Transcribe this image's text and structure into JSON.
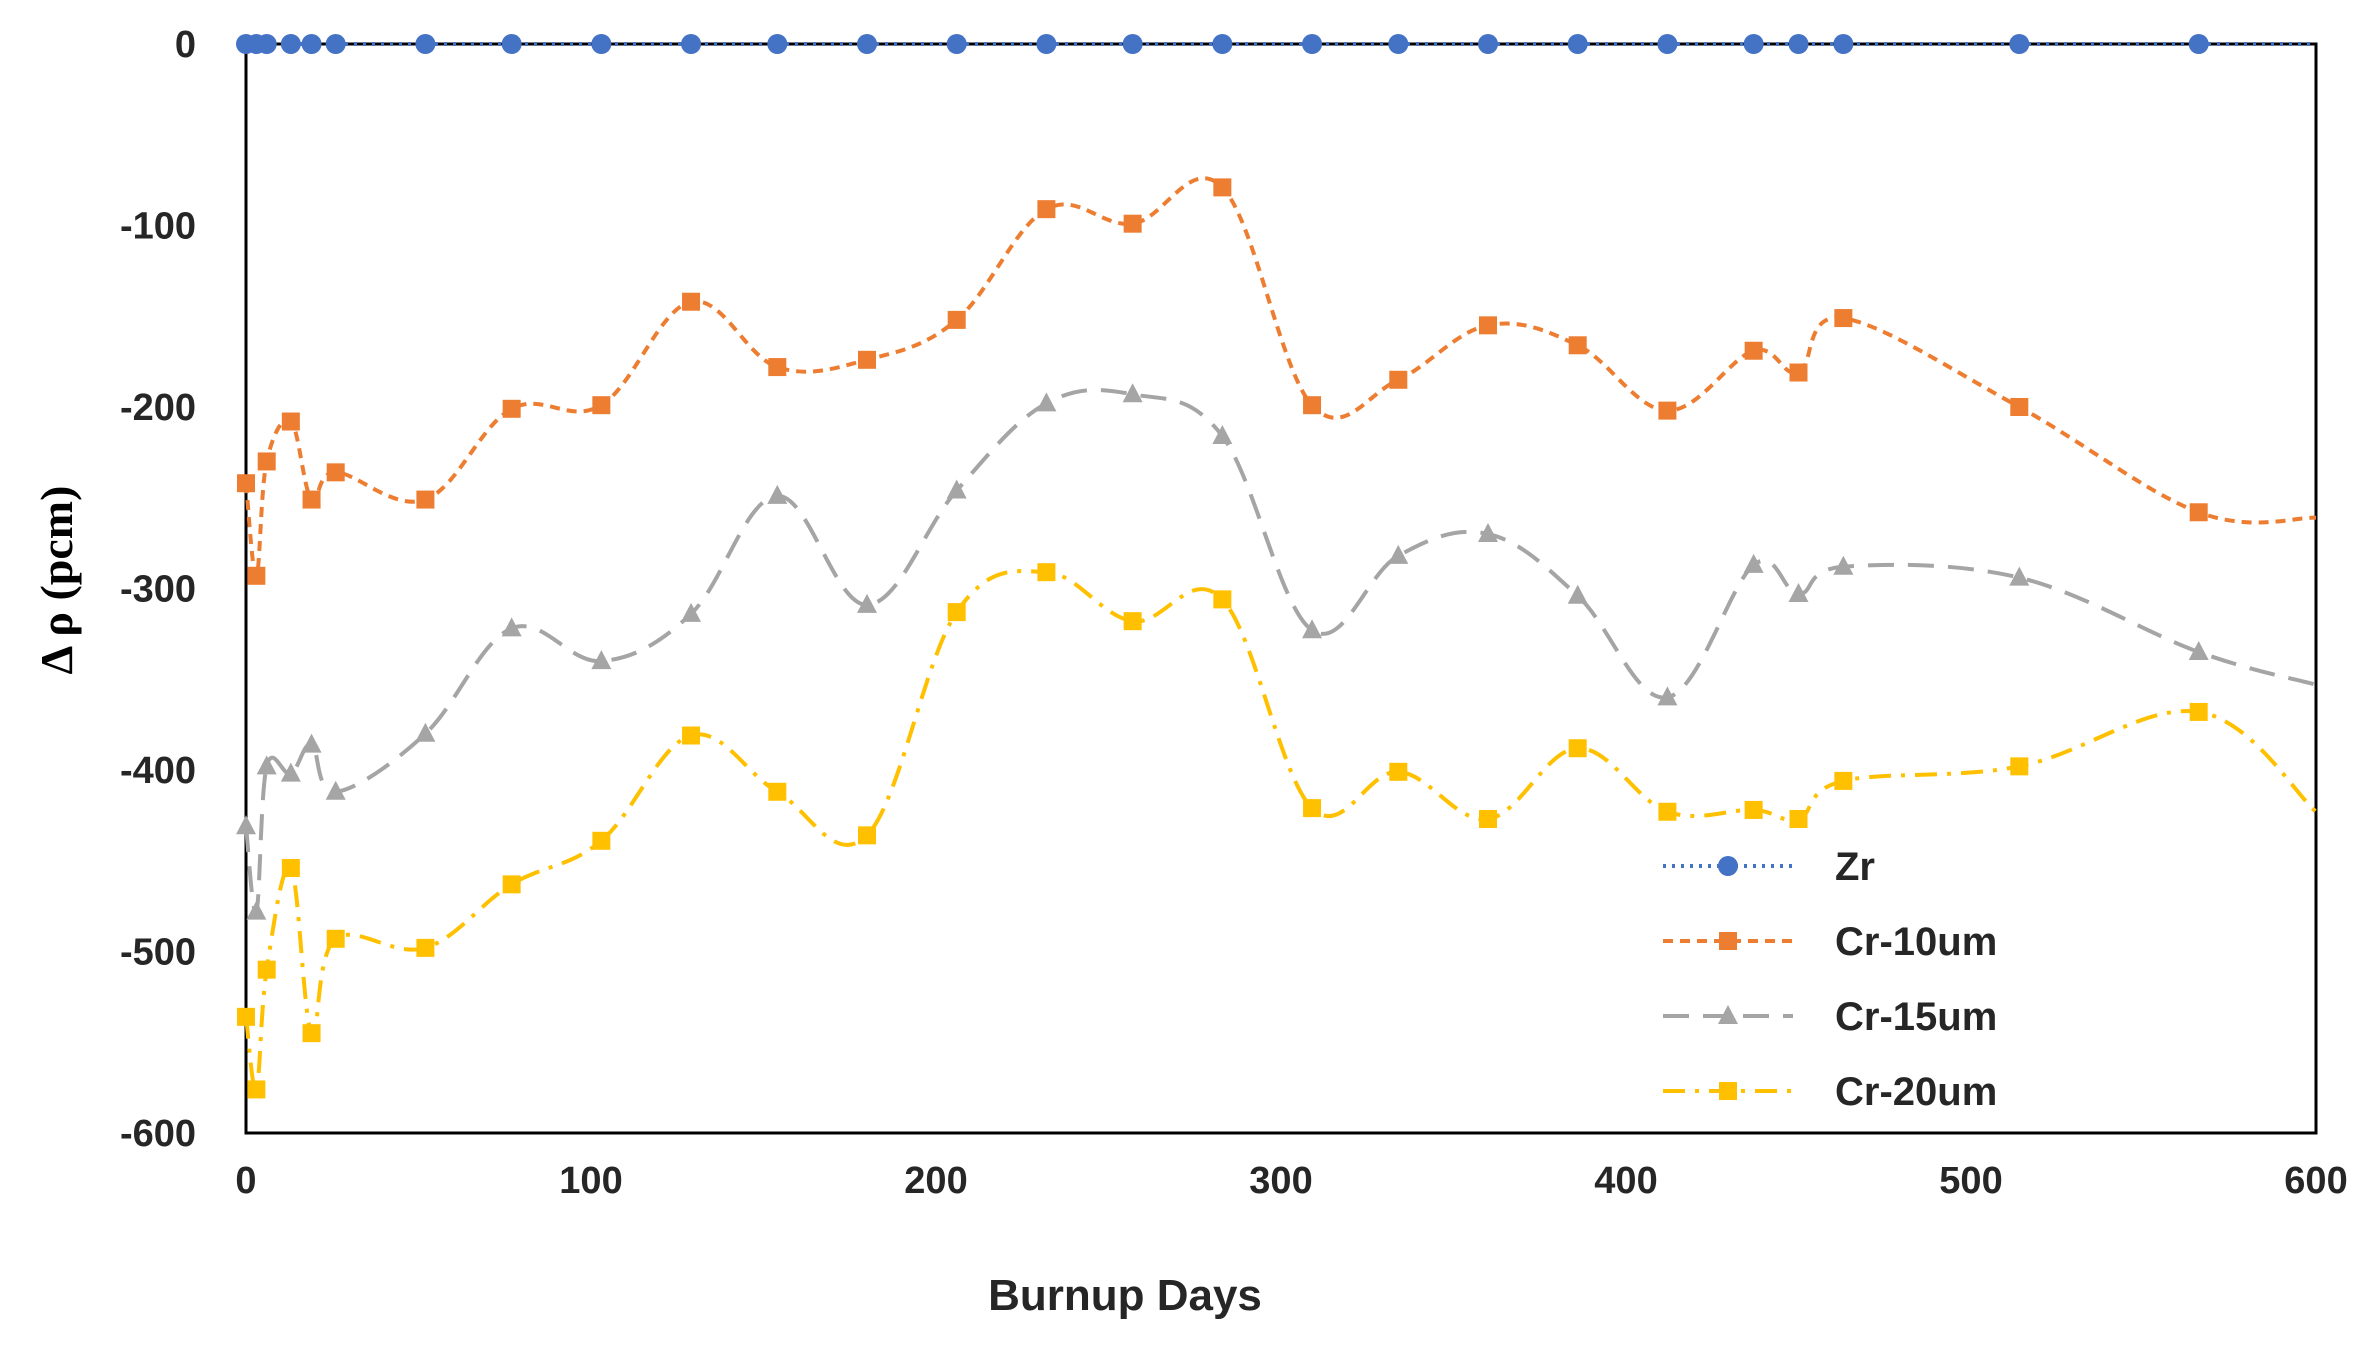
{
  "chart_data": {
    "type": "line",
    "title": "",
    "xlabel": "Burnup Days",
    "ylabel": "Δ ρ (pcm)",
    "xlim": [
      0,
      600
    ],
    "ylim": [
      -600,
      0
    ],
    "xticks": [
      0,
      100,
      200,
      300,
      400,
      500,
      600
    ],
    "yticks": [
      0,
      -100,
      -200,
      -300,
      -400,
      -500,
      -600
    ],
    "xtick_labels": [
      "0",
      "100",
      "200",
      "300",
      "400",
      "500",
      "600"
    ],
    "ytick_labels": [
      "0",
      "-100",
      "-200",
      "-300",
      "-400",
      "-500",
      "-600"
    ],
    "grid": false,
    "legend_position": "bottom-right",
    "x": [
      0,
      3,
      6,
      13,
      19,
      26,
      52,
      77,
      103,
      129,
      154,
      180,
      206,
      232,
      257,
      283,
      309,
      334,
      360,
      386,
      412,
      437,
      450,
      463,
      514,
      566
    ],
    "series": [
      {
        "name": "Zr",
        "color": "#4472C4",
        "marker": "circle",
        "line_style": "dotted",
        "values": [
          0,
          0,
          0,
          0,
          0,
          0,
          0,
          0,
          0,
          0,
          0,
          0,
          0,
          0,
          0,
          0,
          0,
          0,
          0,
          0,
          0,
          0,
          0,
          0,
          0,
          0
        ],
        "line_extends_to": 600
      },
      {
        "name": "Cr-10um",
        "color": "#ED7D31",
        "marker": "square",
        "line_style": "dashed",
        "values": [
          -242,
          -293,
          -230,
          -208,
          -251,
          -236,
          -251,
          -201,
          -199,
          -142,
          -178,
          -174,
          -152,
          -91,
          -99,
          -79,
          -199,
          -185,
          -155,
          -166,
          -202,
          -169,
          -181,
          -151,
          -200,
          -258
        ],
        "line_extends_to": 600,
        "line_end_value": -261
      },
      {
        "name": "Cr-15um",
        "color": "#A5A5A5",
        "marker": "triangle",
        "line_style": "long-dash",
        "values": [
          -431,
          -478,
          -398,
          -402,
          -386,
          -412,
          -380,
          -322,
          -340,
          -314,
          -249,
          -309,
          -246,
          -198,
          -193,
          -216,
          -323,
          -282,
          -270,
          -304,
          -360,
          -287,
          -303,
          -288,
          -294,
          -335
        ],
        "line_extends_to": 600,
        "line_end_value": -353
      },
      {
        "name": "Cr-20um",
        "color": "#FFC000",
        "marker": "square",
        "line_style": "dash-dot",
        "values": [
          -536,
          -576,
          -510,
          -454,
          -545,
          -493,
          -498,
          -463,
          -439,
          -381,
          -412,
          -436,
          -313,
          -291,
          -318,
          -306,
          -421,
          -401,
          -427,
          -388,
          -423,
          -422,
          -427,
          -406,
          -398,
          -368
        ],
        "line_extends_to": 600,
        "line_end_value": -423
      }
    ]
  }
}
